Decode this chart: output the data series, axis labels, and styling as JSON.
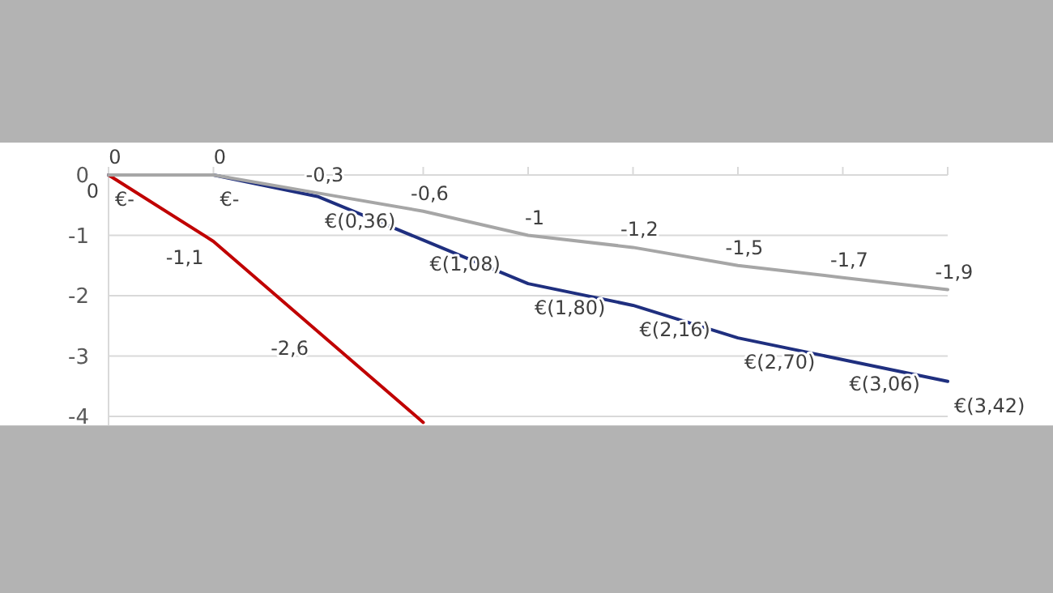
{
  "chart_data": {
    "type": "line",
    "categories": [
      null,
      null,
      null,
      null,
      null,
      null,
      null,
      null,
      null
    ],
    "ylim": [
      -4.15,
      0
    ],
    "yticks": [
      0,
      -1,
      -2,
      -3,
      -4
    ],
    "grid": "y",
    "marker": "none",
    "line_style": "solid",
    "series": [
      {
        "color": "#c00000",
        "values": [
          0,
          -1.1,
          -2.6,
          -4.1,
          null,
          null,
          null,
          null,
          null
        ],
        "value_labels": [
          "0",
          "-1,1",
          "-2,6",
          null,
          null,
          null,
          null,
          null,
          null
        ]
      },
      {
        "color": "#1f2f7f",
        "values": [
          0,
          0,
          -0.36,
          -1.08,
          -1.8,
          -2.16,
          -2.7,
          -3.06,
          -3.42
        ],
        "value_labels": [
          "€-",
          "€-",
          "€(0,36)",
          "€(1,08)",
          "€(1,80)",
          "€(2,16)",
          "€(2,70)",
          "€(3,06)",
          "€(3,42)"
        ]
      },
      {
        "color": "#a6a6a6",
        "values": [
          0,
          0,
          -0.3,
          -0.6,
          -1,
          -1.2,
          -1.5,
          -1.7,
          -1.9
        ],
        "value_labels": [
          "0",
          "0",
          "-0,3",
          "-0,6",
          "-1",
          "-1,2",
          "-1,5",
          "-1,7",
          "-1,9"
        ]
      }
    ]
  }
}
